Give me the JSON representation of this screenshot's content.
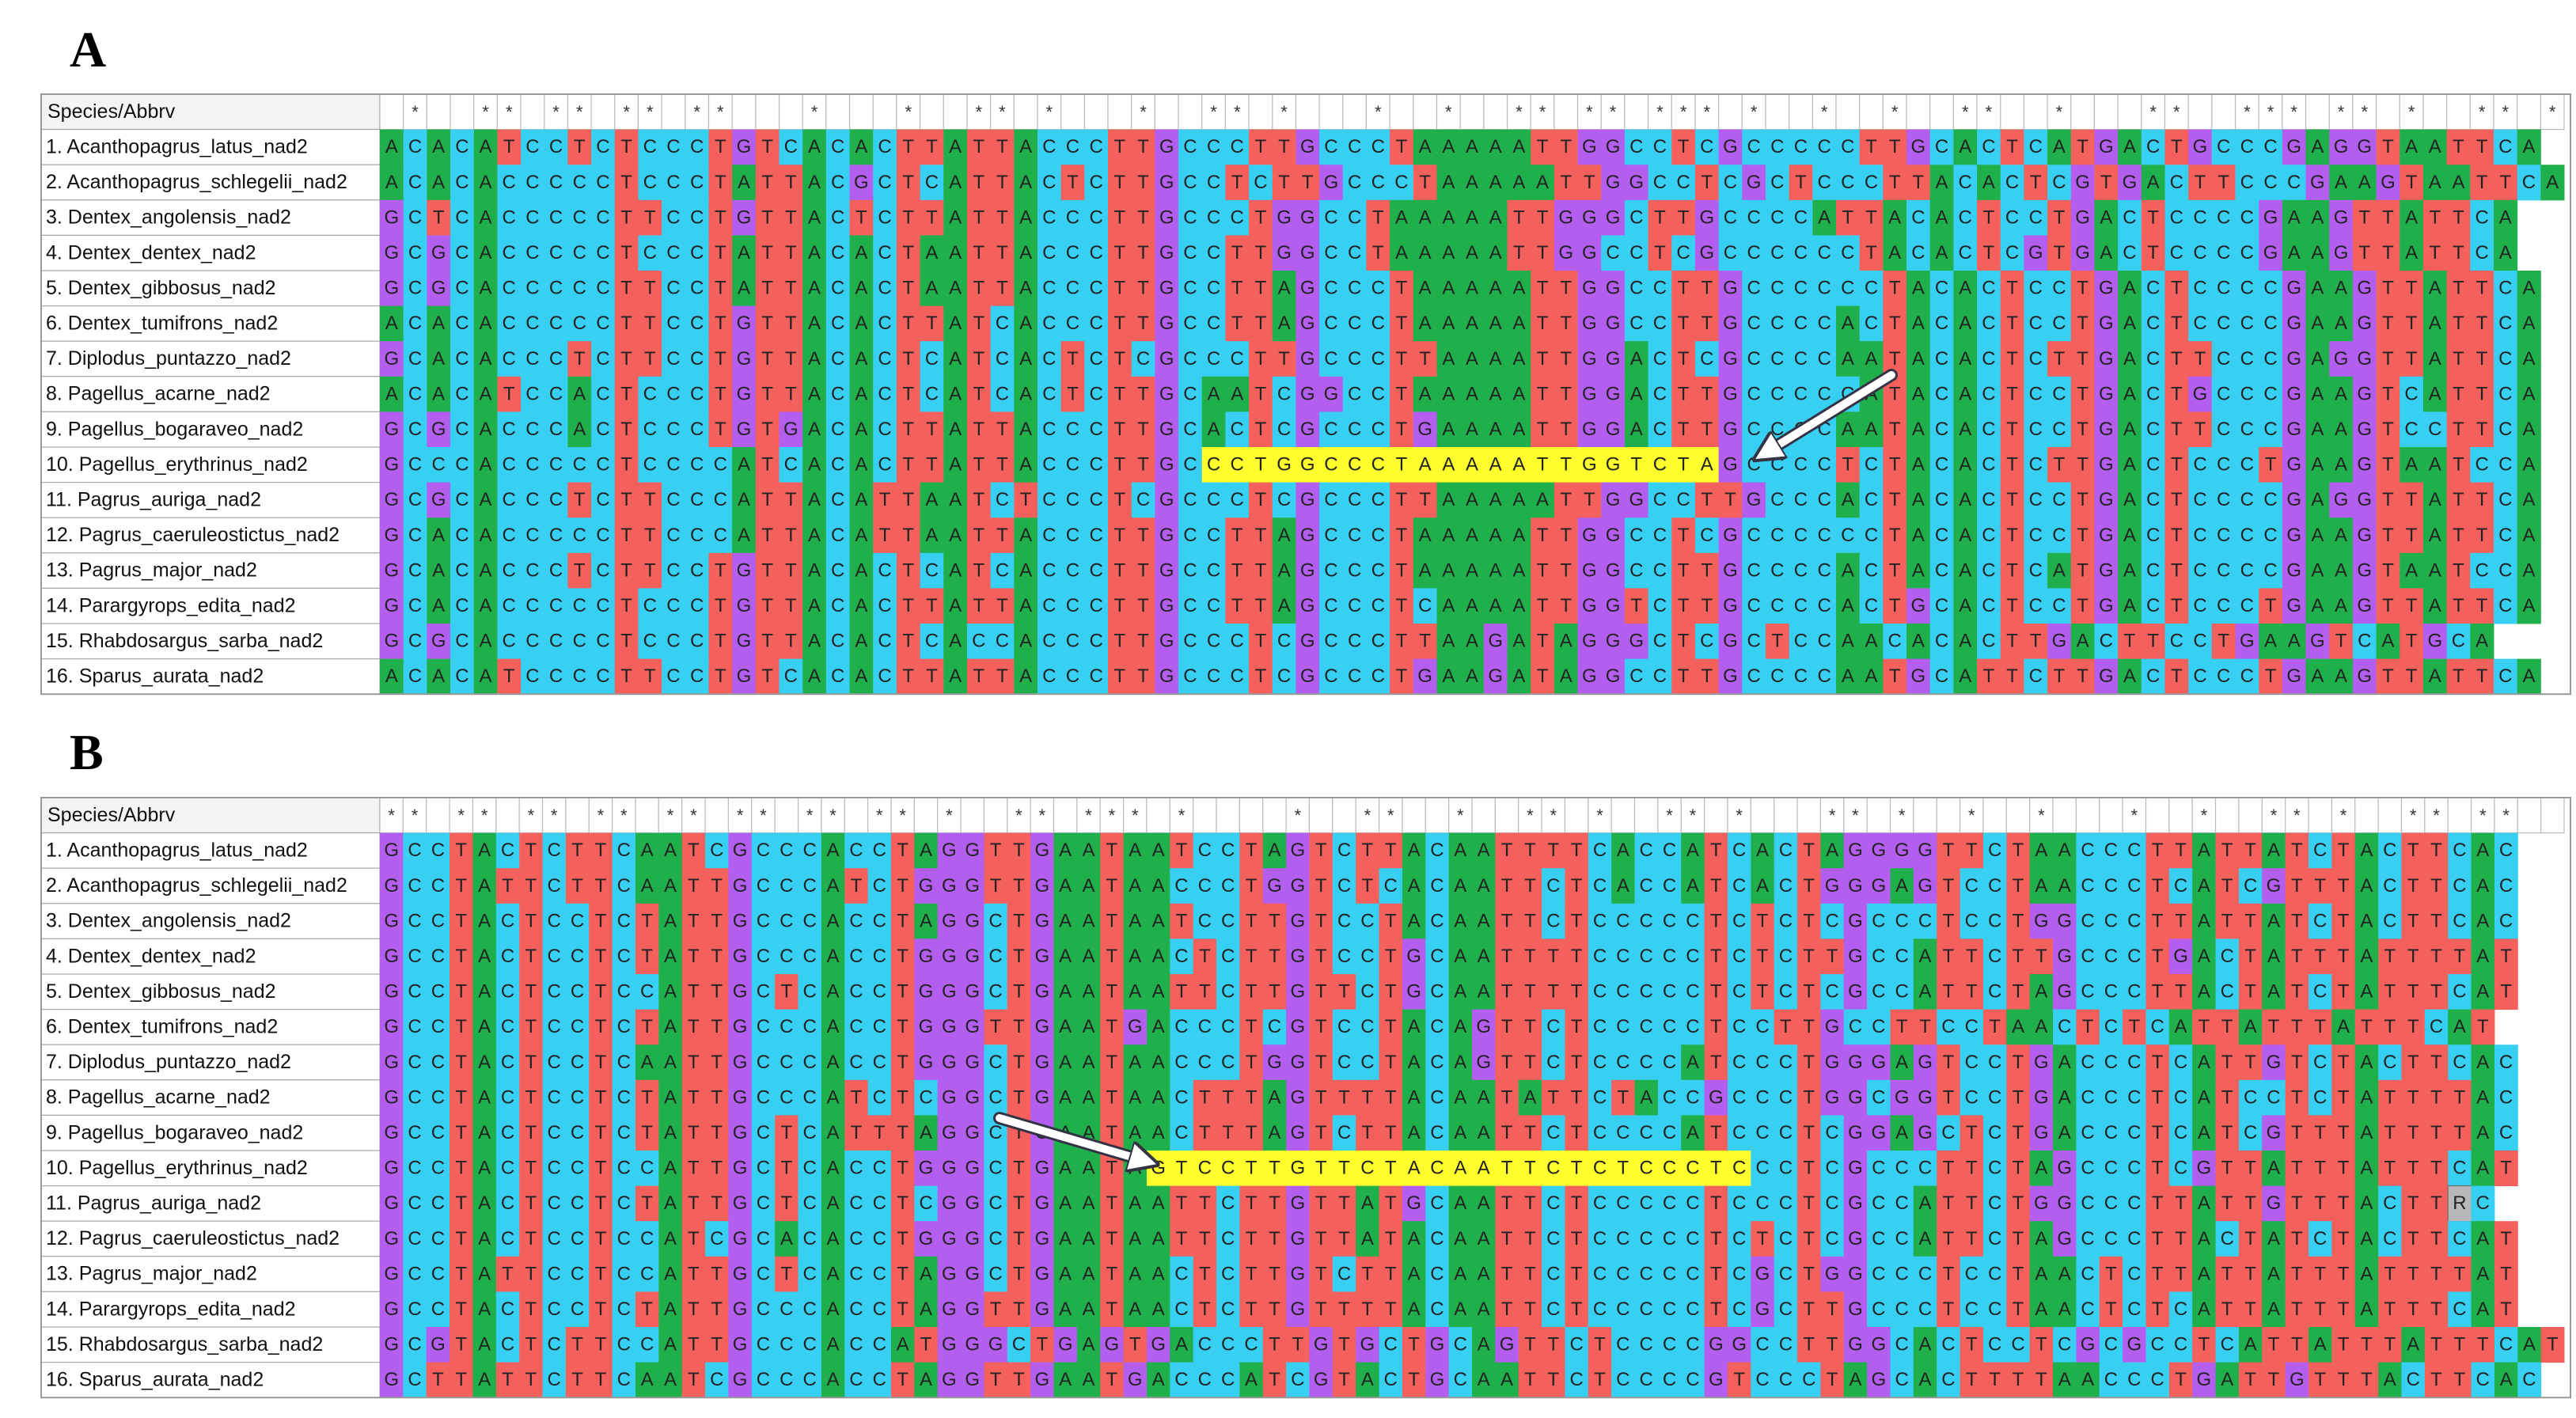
{
  "colors": {
    "A": "#1fb04b",
    "C": "#38d0f2",
    "G": "#b45ef0",
    "T": "#f4615c",
    "R": "#b8b8b8"
  },
  "panels": [
    {
      "label": "A",
      "header": "Species/Abbrv",
      "conservation": " *  ** ** ** **   *   *  ** *   *  ** *   *  *  ** ** *** *  *  *  **  *   **  *** ** *  ** *",
      "highlight": {
        "row": 9,
        "start": 35,
        "length": 22
      },
      "rows": [
        {
          "name": "1. Acanthopagrus_latus_nad2",
          "sequence": "ACACATCCTCTCCCTGTCACACTTATTACCCTTGCCCTTGCCCTAAAAATTGGCCTCGCCCCCTTGCACTCATGACTGCCCGAGGTAATTCA"
        },
        {
          "name": "2. Acanthopagrus_schlegelii_nad2",
          "sequence": "ACACACCCCCTCCCTATTACGCTCATTACTCTTGCCTCTTGCCCTAAAAATTGGCCTCGCTCCCTTACACTCGTGACTTCCCGAAGTAATTCA"
        },
        {
          "name": "3. Dentex_angolensis_nad2",
          "sequence": "GCTCACCCCCTTCCTGTTACTCTTATTACCCTTGCCCTGGCCTAAAAATTGGGCTTGCCCCATTACACTCCTGACTCCCCGAAGTTATTCA"
        },
        {
          "name": "4. Dentex_dentex_nad2",
          "sequence": "GCGCACCCCCTCCCTATTACACTAATTACCCTTGCCTTGGCCTAAAAATTGGCCTCGCCCCCCTACACTCGTGACTCCCCGAAGTTATTCA"
        },
        {
          "name": "5. Dentex_gibbosus_nad2",
          "sequence": "GCGCACCCCCTTCCTATTACACTAATTACCCTTGCCTTAGCCCTAAAAATTGGCCTTGCCCCCCTACACTCCTGACTCCCCGAAGTTATTCA"
        },
        {
          "name": "6. Dentex_tumifrons_nad2",
          "sequence": "ACACACCCCCTTCCTGTTACACTTATCACCCTTGCCTTAGCCCTAAAAATTGGCCTTGCCCCACTACACTCCTGACTCCCCGAAGTTATTCA"
        },
        {
          "name": "7. Diplodus_puntazzo_nad2",
          "sequence": "GCACACCCTCTTCCTGTTACACTCATCACTCTCGCCCTTGCCCTTAAAATTGGACTCGCCCCAATACACTCTTGACTTCCCGAGGTTATTCA"
        },
        {
          "name": "8. Pagellus_acarne_nad2",
          "sequence": "ACACATCCACTCCCTGTTACACTCATCACTCTTGCAATCGGCCTAAAAATTGGACTTGCCCCCATACACTCCTGACTGCCCGAAGTCATTCA"
        },
        {
          "name": "9. Pagellus_bogaraveo_nad2",
          "sequence": "GCGCACCCACTCCCTGTGACACTTATTACCCTTGCACTCGCCCTGAAAATTGGACTTGCCCCAATACACTCCTGACTTCCCGAAGTCCTTCA"
        },
        {
          "name": "10. Pagellus_erythrinus_nad2",
          "sequence": "GCCCACCCCCTCCCCATCACACTTATTACCCTTGCCCTGGCCCTAAAAATTGGTCTAGCCCCTCTACACTCTTGACTCCCTGAAGTAATCCA"
        },
        {
          "name": "11. Pagrus_auriga_nad2",
          "sequence": "GCGCACCCTCTTCCCATTACATTAATCTCCCTCGCCCTCGCCCTTAAAAATTGGCCTTGCCCACTACACTCCTGACTCCCCGAGGTTATTCA"
        },
        {
          "name": "12. Pagrus_caeruleostictus_nad2",
          "sequence": "GCACACCCCCTTCCCATTACATTAATTACCCTTGCCTTAGCCCTAAAAATTGGCCTCGCCCCCCTACACTCCTGACTCCCCGAAGTTATTCA"
        },
        {
          "name": "13. Pagrus_major_nad2",
          "sequence": "GCACACCCTCTTCCTGTTACACTCATCACCCTTGCCTTAGCCCTAAAAATTGGCCTTGCCCCACTACACTCATGACTCCCCGAAGTAATCCA"
        },
        {
          "name": "14. Parargyrops_edita_nad2",
          "sequence": "GCACACCCCCTCCCTGTTACACTTATTACCCTTGCCTTAGCCCTCAAAATTGGTCTTGCCCCACTGCACTCCTGACTCCCTGAAGTTATTCA"
        },
        {
          "name": "15. Rhabdosargus_sarba_nad2",
          "sequence": "GCGCACCCCCTCCCTGTTACACTCACCACCCTTGCCCTCGCCCTTAAGATAGGGCTCGCTCCAACACACTTGACTTCCTGAAGTCATGCA"
        },
        {
          "name": "16. Sparus_aurata_nad2",
          "sequence": "ACACATCCCCTTCCTGTCACACTTATTACCCTTGCCCTCGCCCTGAAGATAGGCCTTGCCCCAATGCATTCTTGACTCCCTGAAGTTATTCA"
        }
      ]
    },
    {
      "label": "B",
      "header": "Species/Abbrv",
      "conservation": "** ** ** ** ** ** ** ** *  ** *** *    *  **  *  ** *  ** *   ** *  *  *   *  *  ** *  ** **  ",
      "highlight": {
        "row": 9,
        "start": 33,
        "length": 26
      },
      "rows": [
        {
          "name": "1. Acanthopagrus_latus_nad2",
          "sequence": "GCCTACTCTTCAATCGCCCACCTAGGTTGAATAATCCTAGTCTTACAATTTTCACCATCACTAGGGGTTCTAACCCTTATTATCTACTTCAC"
        },
        {
          "name": "2. Acanthopagrus_schlegelii_nad2",
          "sequence": "GCCTATTCTTCAATTGCCCATCTGGGTTGAATAACCCTGGTCTCACAATTCTCACCATCACTGGGAGTCCTAACCCTCATCGTTTACTTCAC"
        },
        {
          "name": "3. Dentex_angolensis_nad2",
          "sequence": "GCCTACTCCTCTATTGCCCACCTAGGCTGAATAATCCTTGTCCTACAATTCTCCCCCTCTCTCGCCCTCCTGGCCCTTATTATCTACTTCAC"
        },
        {
          "name": "4. Dentex_dentex_nad2",
          "sequence": "GCCTACTCCTCTATTGCCCACCTGGGCTGAATAACTCTTGTCCTGCAATTTTCCCCCTCTCTTGCCATTCTTGCCCTGACTATTTATTTTAT"
        },
        {
          "name": "5. Dentex_gibbosus_nad2",
          "sequence": "GCCTACTCCTCCATTGCTCACCTGGGCTGAATAATTCTTGTTCTGCAATTTTCCCCCTCTCTCGCCATTCTAGCCCTTACTATCTATTTCAT"
        },
        {
          "name": "6. Dentex_tumifrons_nad2",
          "sequence": "GCCTACTCCTCTATTGCCCACCTGGGTTGAATGACCCTCGTCCTACAGTTCTCCCCCTCCTTGCCTTCCTAACTCTCATTATTTATTTCAT"
        },
        {
          "name": "7. Diplodus_puntazzo_nad2",
          "sequence": "GCCTACTCCTCAATTGCCCACCTGGGCTGAATAACCCTGGTCCTACAGTTCTCCCCATCCCTGGGAGTCCTGACCCTCATTGTCTACTTCAC"
        },
        {
          "name": "8. Pagellus_acarne_nad2",
          "sequence": "GCCTACTCCTCTATTGCCCATCTCGGCTGAATAACTTTAGTTTTACAATATTCTACCGCCCTGGCGGTCCTGACCCTCATCCTCTATTTTAC"
        },
        {
          "name": "9. Pagellus_bogaraveo_nad2",
          "sequence": "GCCTACTCCTCTATTGCTCATTTAGGCTGAATAACTTTAGTCTTACAATTCTCCCCATCCCTCGGAGCTCTGACCCTCATCGTTTATTTTAC"
        },
        {
          "name": "10. Pagellus_erythrinus_nad2",
          "sequence": "GCCTACTCCTCCATTGCTCACCTGGGCTGAATAGTCCTTGTTCTACAATTCTCTCCCTCCCTCGCCCTTCTAGCCCTCGTTATTTATTTCAT"
        },
        {
          "name": "11. Pagrus_auriga_nad2",
          "sequence": "GCCTACTCCTCTATTGCTCACCTCGGCTGAATAATTCTTGTTATGCAATTCTCCCCCTCCCTCGCCATTCTGGCCCTTATTGTTTACTTRC"
        },
        {
          "name": "12. Pagrus_caeruleostictus_nad2",
          "sequence": "GCCTACTCCTCCATCGCACACCTGGGCTGAATAATTCTTGTTATACAATTCTCCCCCTCTCTCGCCATTCTAGCCCTTACTATCTACTTCAT"
        },
        {
          "name": "13. Pagrus_major_nad2",
          "sequence": "GCCTATTCCTCCATTGCTCACCTAGGCTGAATAACTCTTGTCTTACAATTCTCCCCCTCGCTGGCCCTCCTAACTCTTATTATTTATTTTAT"
        },
        {
          "name": "14. Parargyrops_edita_nad2",
          "sequence": "GCCTACTCCTCTATTGCCCACCTAGGTTGAATAACTCTTGTTTTACAATTCTCCCCCTCGCTTGCCCTCCTAACTCTCATTATTTATTTCAT"
        },
        {
          "name": "15. Rhabdosargus_sarba_nad2",
          "sequence": "GCGTACTCTTCCATTGCCCACCATGGGCTGAGTGACCCTTGTGCTGCAGTTCTCCCCGGCCTTGGCACTCCTCGCGCCTCATTATTTATTTCAT"
        },
        {
          "name": "16. Sparus_aurata_nad2",
          "sequence": "GCTTATTCTTCAATCGCCCACCTAGGTTGAATGACCCATCGTACTGCAATTCTCCCCGTCCCTAGCACTTTTAACCCTGATTGTTTACTTCAC"
        }
      ]
    }
  ]
}
